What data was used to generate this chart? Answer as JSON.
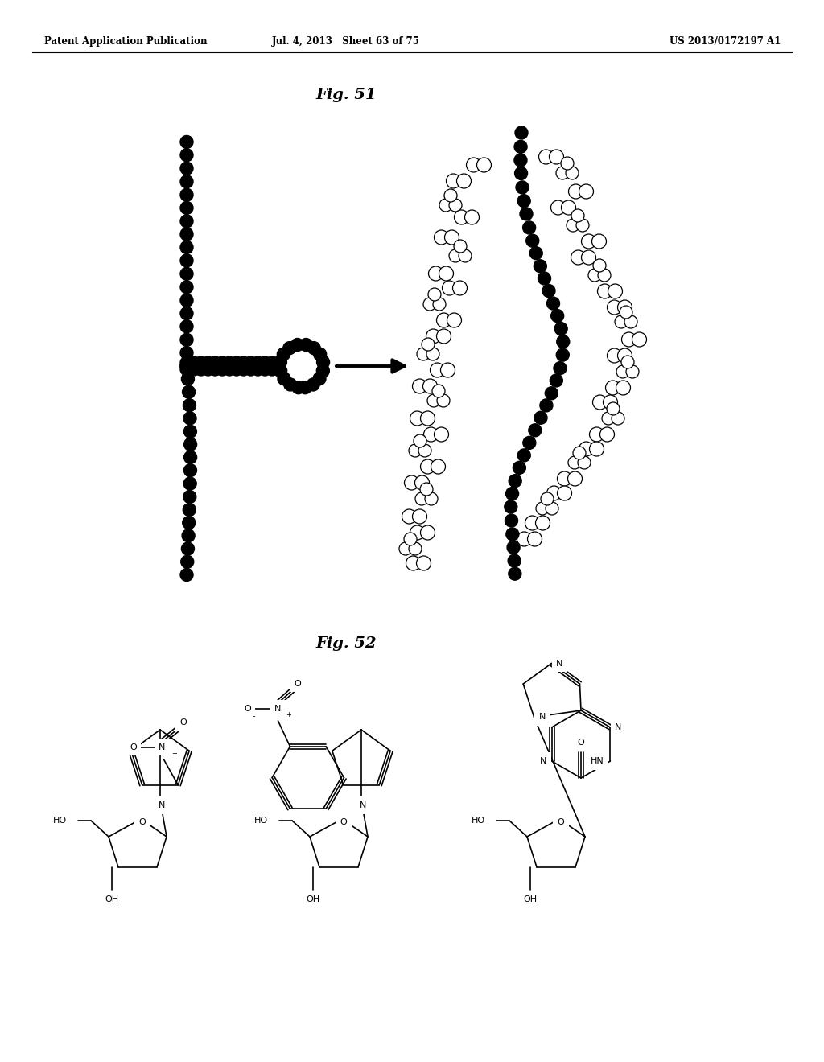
{
  "header_left": "Patent Application Publication",
  "header_mid": "Jul. 4, 2013   Sheet 63 of 75",
  "header_right": "US 2013/0172197 A1",
  "fig51_title": "Fig. 51",
  "fig52_title": "Fig. 52",
  "background": "#ffffff"
}
